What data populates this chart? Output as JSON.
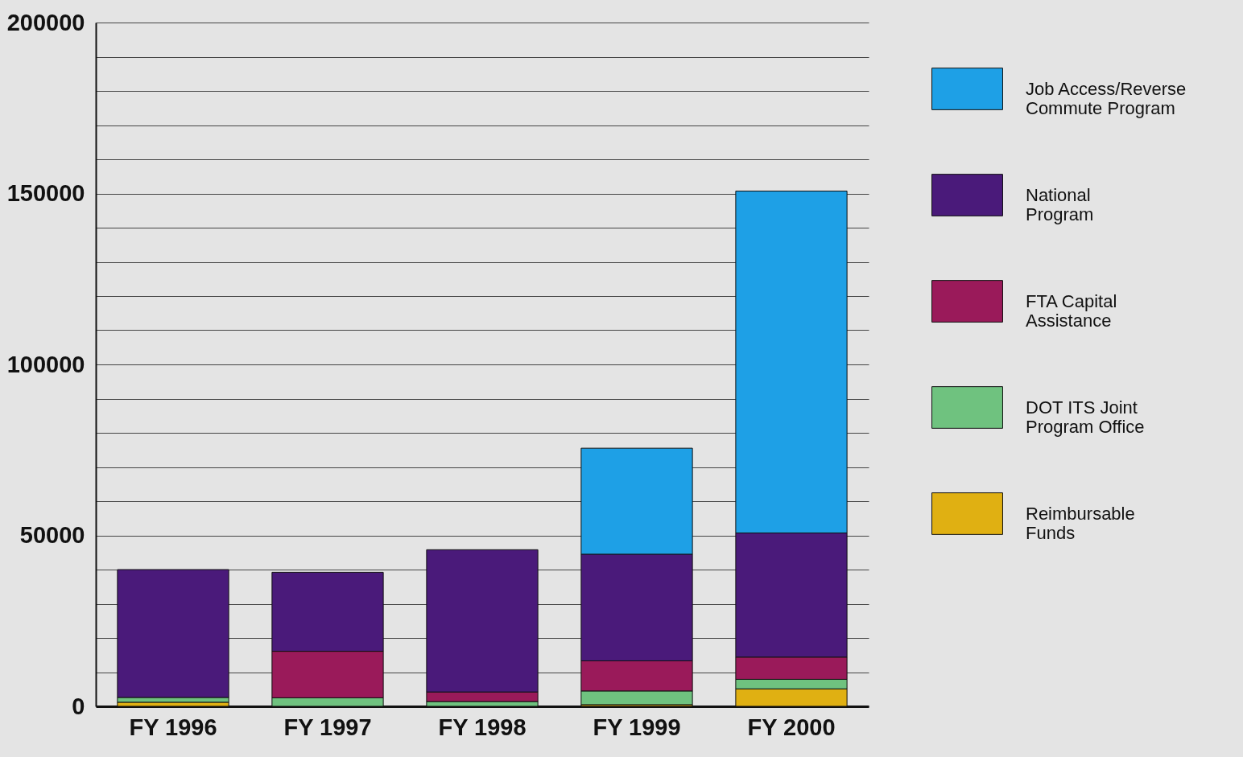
{
  "chart_data": {
    "type": "bar",
    "stacked": true,
    "categories": [
      "FY 1996",
      "FY 1997",
      "FY 1998",
      "FY 1999",
      "FY 2000"
    ],
    "series": [
      {
        "name": "Reimbursable Funds",
        "color": "#e0b012",
        "values": [
          1200,
          null,
          null,
          500,
          5100
        ]
      },
      {
        "name": "DOT ITS Joint Program Office",
        "color": "#6fc27f",
        "values": [
          1400,
          2500,
          1400,
          4000,
          2800
        ]
      },
      {
        "name": "FTA Capital Assistance",
        "color": "#9a1a5a",
        "values": [
          null,
          13600,
          2800,
          8800,
          6500
        ]
      },
      {
        "name": "National Program",
        "color": "#4a1a7a",
        "values": [
          37400,
          23100,
          41600,
          31200,
          36300
        ]
      },
      {
        "name": "Job Access/Reverse Commute Program",
        "color": "#1ea0e6",
        "values": [
          null,
          null,
          null,
          31000,
          100000
        ]
      }
    ],
    "ylim": [
      0,
      200000
    ],
    "yticks": [
      0,
      {
        "value": 10000,
        "label": null
      },
      {
        "value": 20000,
        "label": null
      },
      {
        "value": 30000,
        "label": null
      },
      {
        "value": 40000,
        "label": null
      },
      50000,
      {
        "value": 60000,
        "label": null
      },
      {
        "value": 70000,
        "label": null
      },
      {
        "value": 80000,
        "label": null
      },
      {
        "value": 90000,
        "label": null
      },
      100000,
      {
        "value": 110000,
        "label": null
      },
      {
        "value": 120000,
        "label": null
      },
      {
        "value": 130000,
        "label": null
      },
      {
        "value": 140000,
        "label": null
      },
      150000,
      {
        "value": 160000,
        "label": null
      },
      {
        "value": 170000,
        "label": null
      },
      {
        "value": 180000,
        "label": null
      },
      {
        "value": 190000,
        "label": null
      },
      200000
    ],
    "grid": true,
    "legend": "right"
  }
}
